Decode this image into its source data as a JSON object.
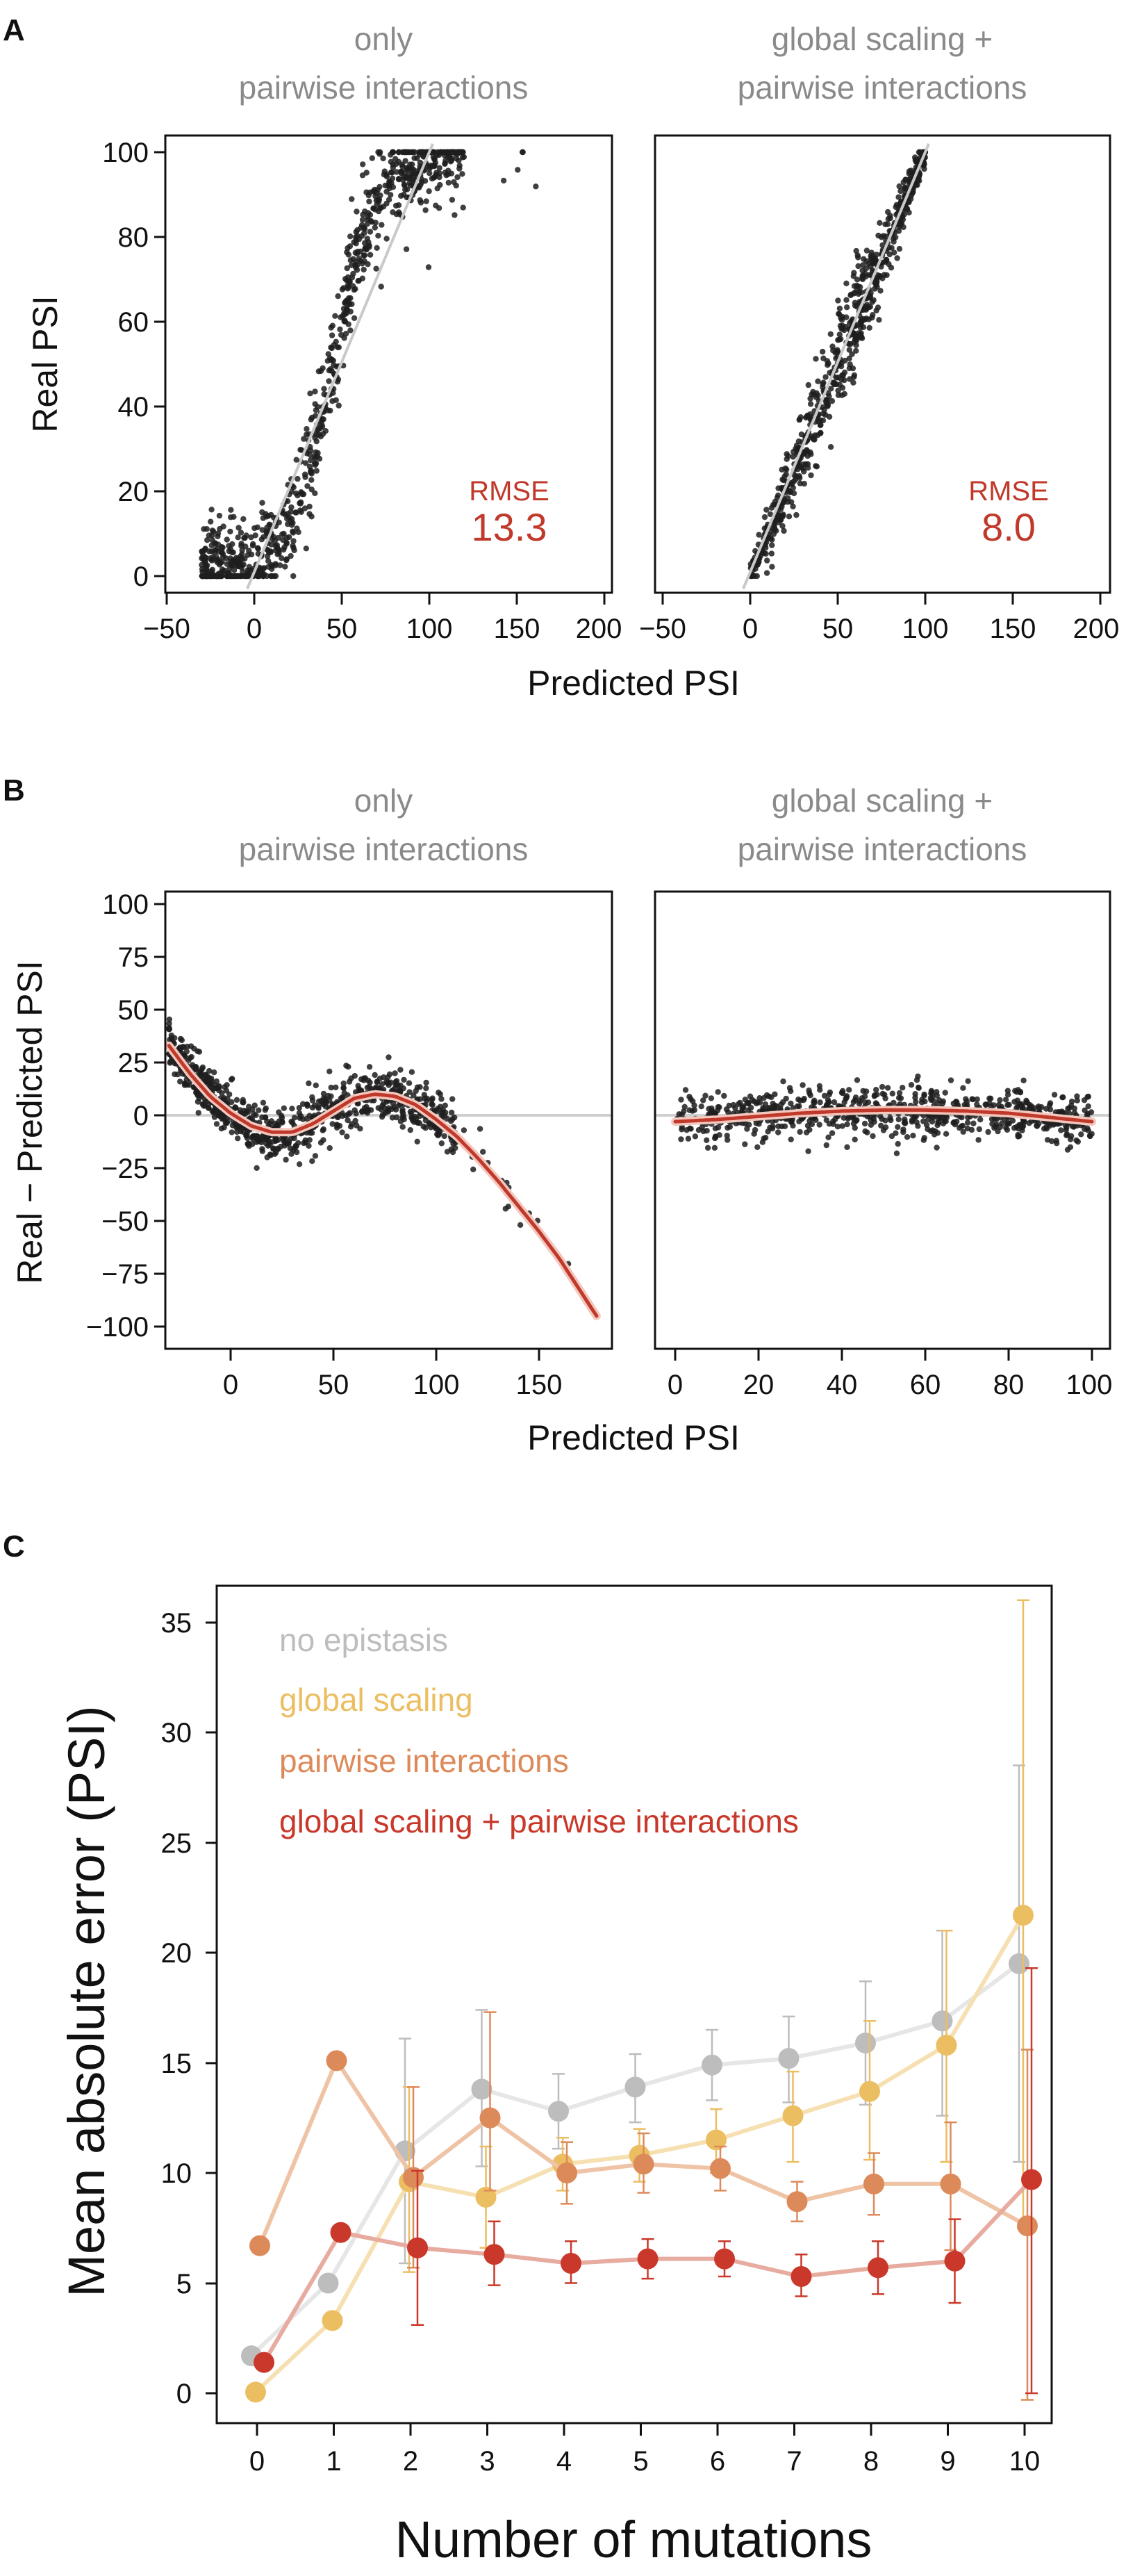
{
  "panels": {
    "A": {
      "letter": "A",
      "xlabel": "Predicted PSI",
      "ylabel": "Real PSI",
      "subplots": [
        {
          "title_line1": "only",
          "title_line2": "pairwise interactions",
          "rmse_label": "RMSE",
          "rmse_value": "13.3"
        },
        {
          "title_line1": "global scaling +",
          "title_line2": "pairwise interactions",
          "rmse_label": "RMSE",
          "rmse_value": "8.0"
        }
      ],
      "x_ticks": [
        "−50",
        "0",
        "50",
        "100",
        "150",
        "200"
      ],
      "y_ticks": [
        "0",
        "20",
        "40",
        "60",
        "80",
        "100"
      ]
    },
    "B": {
      "letter": "B",
      "xlabel": "Predicted PSI",
      "ylabel": "Real − Predicted PSI",
      "subplots": [
        {
          "title_line1": "only",
          "title_line2": "pairwise interactions"
        },
        {
          "title_line1": "global scaling +",
          "title_line2": "pairwise interactions"
        }
      ],
      "x_ticks_left": [
        "0",
        "50",
        "100",
        "150"
      ],
      "x_ticks_right": [
        "0",
        "20",
        "40",
        "60",
        "80",
        "100"
      ],
      "y_ticks": [
        "100",
        "75",
        "50",
        "25",
        "0",
        "−25",
        "−50",
        "−75",
        "−100"
      ]
    },
    "C": {
      "letter": "C",
      "xlabel": "Number of mutations",
      "ylabel": "Mean absolute error (PSI)",
      "x_ticks": [
        "0",
        "1",
        "2",
        "3",
        "4",
        "5",
        "6",
        "7",
        "8",
        "9",
        "10"
      ],
      "y_ticks": [
        "0",
        "5",
        "10",
        "15",
        "20",
        "25",
        "30",
        "35"
      ]
    }
  },
  "colors": {
    "points": "#1f1f1f",
    "refline": "#c9c9c9",
    "fit": "#c0392b",
    "rmse": "#c0392b",
    "no_epistasis": "#bdbdbd",
    "global_scaling": "#ecbe62",
    "pairwise": "#dd8a5a",
    "global_pairwise": "#c9382a"
  },
  "chart_data": [
    {
      "type": "scatter",
      "title": "only pairwise interactions",
      "xlabel": "Predicted PSI",
      "ylabel": "Real PSI",
      "xlim": [
        -60,
        205
      ],
      "ylim": [
        -3,
        102
      ],
      "annotation": "RMSE 13.3",
      "point_cloud": {
        "shape": "sigmoid",
        "x_range": [
          -30,
          175
        ],
        "n_points": 900
      }
    },
    {
      "type": "scatter",
      "title": "global scaling + pairwise interactions",
      "xlabel": "Predicted PSI",
      "ylabel": "Real PSI",
      "xlim": [
        -60,
        205
      ],
      "ylim": [
        -3,
        102
      ],
      "annotation": "RMSE 8.0",
      "point_cloud": {
        "shape": "diagonal",
        "x_range": [
          0,
          100
        ],
        "n_points": 700
      }
    },
    {
      "type": "scatter",
      "title": "only pairwise interactions",
      "xlabel": "Predicted PSI",
      "ylabel": "Real − Predicted PSI",
      "xlim": [
        -40,
        182
      ],
      "ylim": [
        -103,
        103
      ],
      "fit_curve": {
        "x": [
          -30,
          -20,
          -10,
          0,
          10,
          20,
          30,
          40,
          50,
          60,
          70,
          80,
          90,
          100,
          110,
          120,
          130,
          140,
          150,
          160,
          170,
          178
        ],
        "y": [
          33,
          20,
          9,
          1,
          -5,
          -8,
          -8,
          -4,
          2,
          8,
          10,
          9,
          5,
          -2,
          -10,
          -20,
          -31,
          -43,
          -55,
          -68,
          -83,
          -95
        ]
      }
    },
    {
      "type": "scatter",
      "title": "global scaling + pairwise interactions",
      "xlabel": "Predicted PSI",
      "ylabel": "Real − Predicted PSI",
      "xlim": [
        -5,
        102
      ],
      "ylim": [
        -103,
        103
      ],
      "fit_curve": {
        "x": [
          0,
          10,
          20,
          30,
          40,
          50,
          60,
          70,
          80,
          90,
          100
        ],
        "y": [
          -3,
          -2,
          -0.5,
          1,
          2,
          2.5,
          2.5,
          2,
          1,
          -1,
          -3
        ]
      }
    },
    {
      "type": "line",
      "xlabel": "Number of mutations",
      "ylabel": "Mean absolute error (PSI)",
      "x": [
        0,
        1,
        2,
        3,
        4,
        5,
        6,
        7,
        8,
        9,
        10
      ],
      "ylim": [
        -1,
        37
      ],
      "legend_position": "top-left",
      "series": [
        {
          "name": "no epistasis",
          "color": "#bdbdbd",
          "values": [
            1.7,
            5.0,
            11.0,
            13.8,
            12.8,
            13.9,
            14.9,
            15.2,
            15.9,
            16.9,
            19.5
          ],
          "err_low": [
            null,
            null,
            5.9,
            10.3,
            11.1,
            12.3,
            13.3,
            13.2,
            13.1,
            12.6,
            10.5
          ],
          "err_high": [
            null,
            null,
            16.1,
            17.4,
            14.5,
            15.4,
            16.5,
            17.1,
            18.7,
            21.0,
            28.5
          ]
        },
        {
          "name": "global scaling",
          "color": "#ecbe62",
          "values": [
            0.05,
            3.3,
            9.6,
            8.9,
            10.4,
            10.8,
            11.5,
            12.6,
            13.7,
            15.8,
            21.7
          ],
          "err_low": [
            null,
            null,
            5.5,
            6.6,
            9.2,
            9.6,
            10.0,
            10.5,
            10.6,
            10.5,
            7.5
          ],
          "err_high": [
            null,
            null,
            13.9,
            11.2,
            11.6,
            12.0,
            12.9,
            14.6,
            16.9,
            21.0,
            36.0
          ]
        },
        {
          "name": "pairwise interactions",
          "color": "#dd8a5a",
          "values": [
            6.7,
            15.1,
            9.8,
            12.5,
            10.0,
            10.4,
            10.2,
            8.7,
            9.5,
            9.5,
            7.6
          ],
          "err_low": [
            null,
            null,
            5.7,
            9.2,
            8.6,
            9.1,
            9.2,
            7.8,
            8.1,
            6.5,
            -0.3
          ],
          "err_high": [
            null,
            null,
            13.9,
            17.3,
            11.4,
            11.8,
            11.2,
            9.6,
            10.9,
            12.3,
            15.6
          ]
        },
        {
          "name": "global scaling + pairwise interactions",
          "color": "#c9382a",
          "values": [
            1.4,
            7.3,
            6.6,
            6.3,
            5.9,
            6.1,
            6.1,
            5.3,
            5.7,
            6.0,
            9.7
          ],
          "err_low": [
            null,
            null,
            3.1,
            4.9,
            5.0,
            5.2,
            5.3,
            4.4,
            4.5,
            4.1,
            0.0
          ],
          "err_high": [
            null,
            null,
            10.1,
            7.8,
            6.9,
            7.0,
            6.9,
            6.3,
            6.9,
            7.9,
            19.3
          ]
        }
      ]
    }
  ]
}
